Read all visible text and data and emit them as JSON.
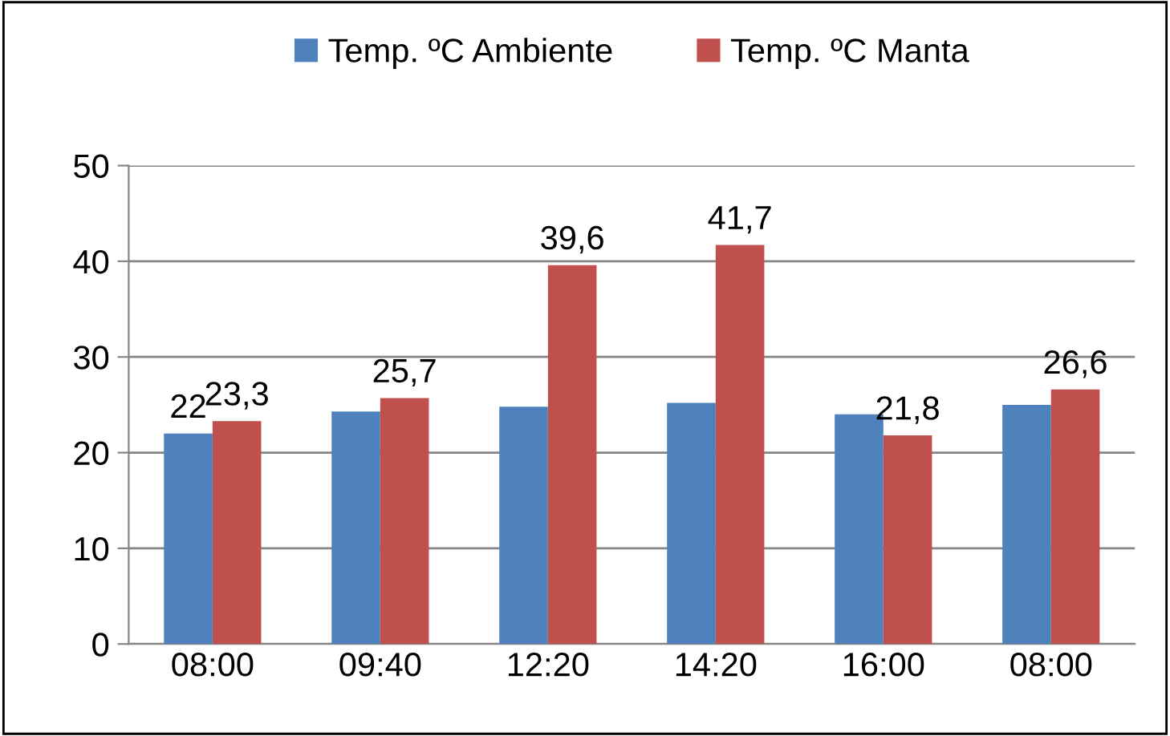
{
  "chart_data": {
    "type": "bar",
    "categories": [
      "08:00",
      "09:40",
      "12:20",
      "14:20",
      "16:00",
      "08:00"
    ],
    "series": [
      {
        "name": "Temp. ºC Ambiente",
        "color": "#4f81bd",
        "values": [
          22,
          24.3,
          24.8,
          25.2,
          24.0,
          25.0
        ],
        "value_labels": [
          "22",
          null,
          null,
          null,
          null,
          null
        ]
      },
      {
        "name": "Temp. ºC Manta",
        "color": "#c0504d",
        "values": [
          23.3,
          25.7,
          39.6,
          41.7,
          21.8,
          26.6
        ],
        "value_labels": [
          "23,3",
          "25,7",
          "39,6",
          "41,7",
          "21,8",
          "26,6"
        ]
      }
    ],
    "ylim": [
      0,
      50
    ],
    "yticks": [
      0,
      10,
      20,
      30,
      40,
      50
    ],
    "grid": "y",
    "legend": "top"
  }
}
